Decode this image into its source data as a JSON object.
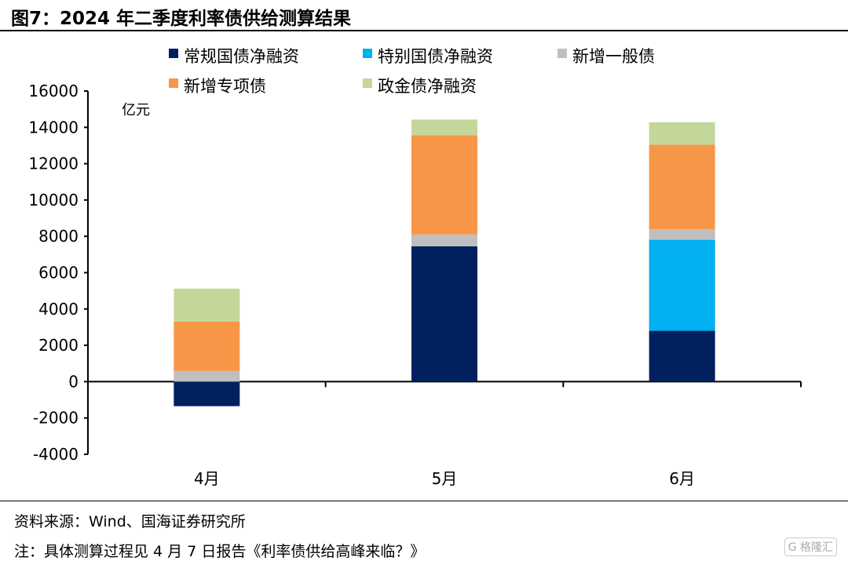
{
  "title": "图7：2024 年二季度利率债供给测算结果",
  "source": "资料来源：Wind、国海证券研究所",
  "footnote": "注：具体测算过程见 4 月 7 日报告《利率债供给高峰来临？》",
  "watermark": "格隆汇",
  "chart_data": {
    "type": "bar",
    "stacked": true,
    "categories": [
      "4月",
      "5月",
      "6月"
    ],
    "unit_label": "亿元",
    "ylim": [
      -4000,
      16000
    ],
    "yticks": [
      -4000,
      -2000,
      0,
      2000,
      4000,
      6000,
      8000,
      10000,
      12000,
      14000,
      16000
    ],
    "grid": false,
    "legend_position": "top",
    "series": [
      {
        "name": "常规国债净融资",
        "color": "#002060",
        "values": [
          -1350,
          7450,
          2800
        ]
      },
      {
        "name": "特别国债净融资",
        "color": "#00B0F0",
        "values": [
          0,
          0,
          5010
        ]
      },
      {
        "name": "新增一般债",
        "color": "#BFBFBF",
        "values": [
          590,
          650,
          590
        ]
      },
      {
        "name": "新增专项债",
        "color": "#F79646",
        "values": [
          2710,
          5470,
          4640
        ]
      },
      {
        "name": "政金债净融资",
        "color": "#C4D79B",
        "values": [
          1820,
          860,
          1240
        ]
      }
    ]
  }
}
